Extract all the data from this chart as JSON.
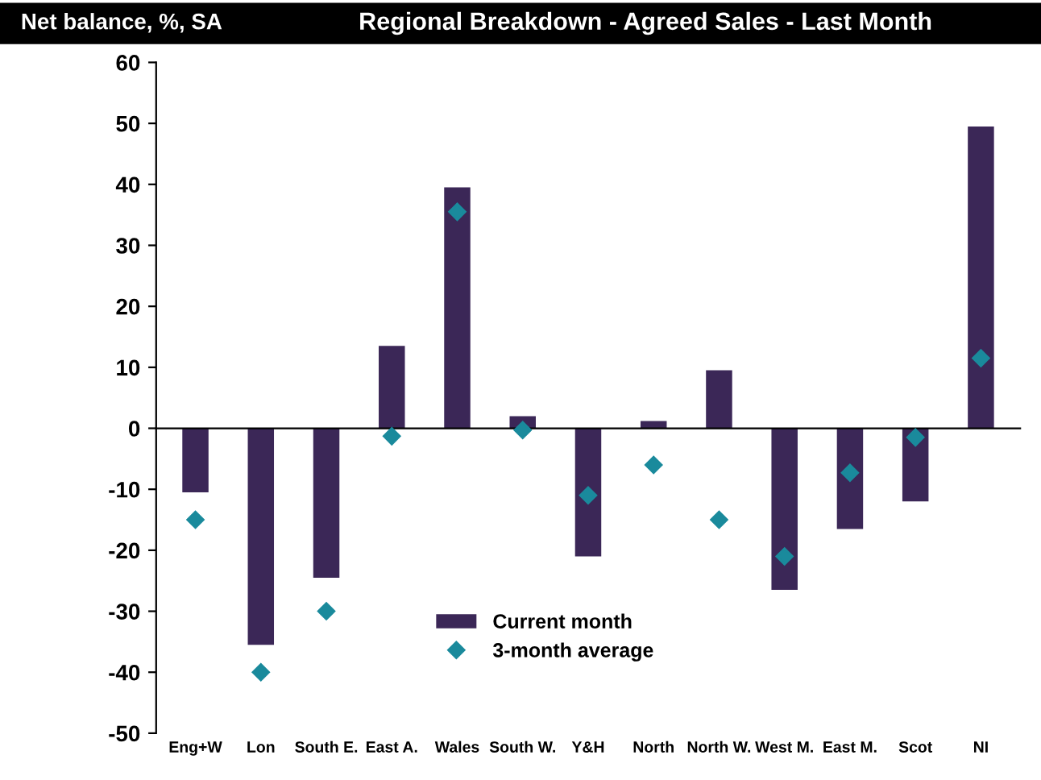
{
  "chart_data": {
    "type": "bar",
    "title": "Regional Breakdown - Agreed Sales - Last Month",
    "ylabel": "Net balance, %, SA",
    "categories": [
      "Eng+W",
      "Lon",
      "South E.",
      "East A.",
      "Wales",
      "South W.",
      "Y&H",
      "North",
      "North W.",
      "West M.",
      "East M.",
      "Scot",
      "NI"
    ],
    "series": [
      {
        "name": "Current month",
        "color": "#3b2757",
        "values": [
          -10.5,
          -35.5,
          -24.5,
          13.5,
          39.5,
          2,
          -21,
          1.2,
          9.5,
          -26.5,
          -16.5,
          -12,
          49.5
        ]
      },
      {
        "name": "3-month average",
        "type": "scatter",
        "color": "#1a8a9c",
        "marker": "diamond",
        "values": [
          -15,
          -40,
          -30,
          -1.3,
          35.5,
          -0.3,
          -11,
          -6,
          -15,
          -21,
          -7.3,
          -1.5,
          11.5
        ]
      }
    ],
    "ylim": [
      -50,
      60
    ],
    "yticks": [
      -50,
      -40,
      -30,
      -20,
      -10,
      0,
      10,
      20,
      30,
      40,
      50,
      60
    ],
    "legend": "bottom"
  }
}
